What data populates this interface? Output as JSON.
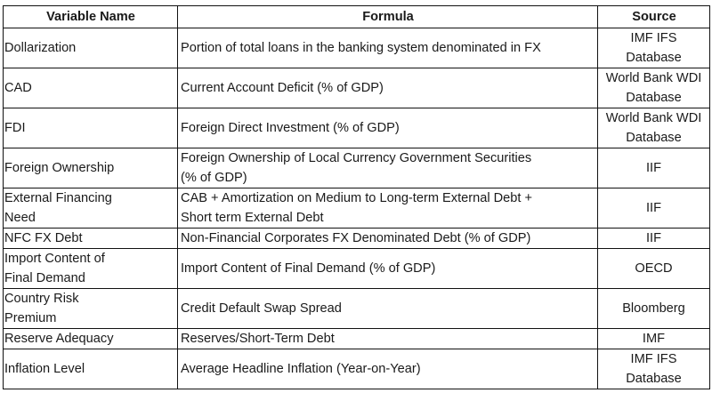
{
  "header": {
    "variable_name": "Variable Name",
    "formula": "Formula",
    "source": "Source"
  },
  "rows": [
    {
      "name": [
        "Dollarization"
      ],
      "formula": [
        "Portion of total loans in the banking system denominated in FX"
      ],
      "source": [
        "IMF IFS",
        "Database"
      ],
      "short": false
    },
    {
      "name": [
        "CAD"
      ],
      "formula": [
        "Current Account Deficit (% of GDP)"
      ],
      "source": [
        "World Bank WDI",
        "Database"
      ],
      "short": false
    },
    {
      "name": [
        "FDI"
      ],
      "formula": [
        "Foreign Direct Investment (% of GDP)"
      ],
      "source": [
        "World Bank WDI",
        "Database"
      ],
      "short": false
    },
    {
      "name": [
        "Foreign Ownership"
      ],
      "formula": [
        "Foreign Ownership of Local Currency Government Securities",
        "(% of GDP)"
      ],
      "source": [
        "IIF"
      ],
      "short": false
    },
    {
      "name": [
        "External Financing",
        "Need"
      ],
      "formula": [
        "CAB + Amortization on Medium to Long-term External Debt +",
        "Short term External Debt"
      ],
      "source": [
        "IIF"
      ],
      "short": false
    },
    {
      "name": [
        "NFC FX Debt"
      ],
      "formula": [
        "Non-Financial Corporates FX Denominated Debt (% of GDP)"
      ],
      "source": [
        "IIF"
      ],
      "short": true
    },
    {
      "name": [
        "Import Content of",
        "Final Demand"
      ],
      "formula": [
        "Import Content of Final Demand (% of GDP)"
      ],
      "source": [
        "OECD"
      ],
      "short": false
    },
    {
      "name": [
        "Country Risk",
        "Premium"
      ],
      "formula": [
        "Credit Default Swap Spread"
      ],
      "source": [
        "Bloomberg"
      ],
      "short": false
    },
    {
      "name": [
        "Reserve Adequacy"
      ],
      "formula": [
        "Reserves/Short-Term Debt"
      ],
      "source": [
        "IMF"
      ],
      "short": true
    },
    {
      "name": [
        "Inflation Level"
      ],
      "formula": [
        "Average Headline Inflation (Year-on-Year)"
      ],
      "source": [
        "IMF IFS",
        "Database"
      ],
      "short": false
    }
  ]
}
